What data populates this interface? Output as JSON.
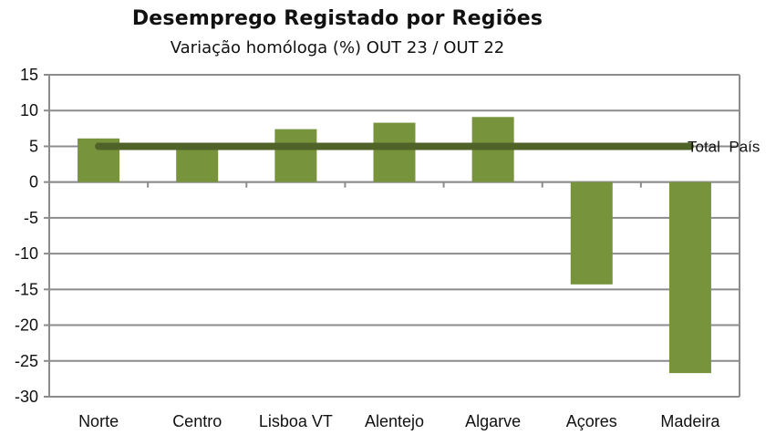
{
  "chart_data": {
    "type": "bar",
    "title": "Desemprego Registado por Regiões",
    "subtitle": "Variação homóloga (%) OUT 23 / OUT 22",
    "xlabel": "",
    "ylabel": "",
    "categories": [
      "Norte",
      "Centro",
      "Lisboa VT",
      "Alentejo",
      "Algarve",
      "Açores",
      "Madeira"
    ],
    "series": [
      {
        "values": [
          6.1,
          5.0,
          7.4,
          8.3,
          9.1,
          -14.3,
          -26.7
        ],
        "color": "#77933c"
      }
    ],
    "reference_line": {
      "name": "Total  País",
      "value": 5.0,
      "color": "#4f6228"
    },
    "ylim": [
      -30,
      15
    ],
    "yticks": [
      15,
      10,
      5,
      0,
      -5,
      -10,
      -15,
      -20,
      -25,
      -30
    ],
    "grid": true,
    "gridline_color": "#8c8c8c"
  }
}
